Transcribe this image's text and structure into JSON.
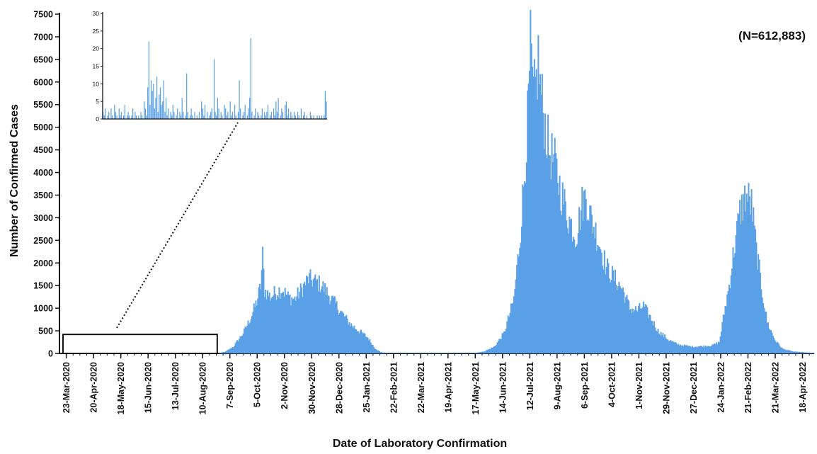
{
  "chart_data": {
    "type": "bar",
    "title": "",
    "xlabel": "Date of Laboratory Confirmation",
    "ylabel": "Number of Confirmed Cases",
    "annotation": "(N=612,883)",
    "color": "#5aa0e6",
    "ylim": [
      0,
      7500
    ],
    "yticks": [
      0,
      500,
      1000,
      1500,
      2000,
      2500,
      3000,
      3500,
      4000,
      4500,
      5000,
      5500,
      6000,
      6500,
      7000,
      7500
    ],
    "x_start_date": "2020-03-16",
    "x_end_date": "2022-04-30",
    "x_tick_labels": [
      "23-Mar-2020",
      "20-Apr-2020",
      "18-May-2020",
      "15-Jun-2020",
      "13-Jul-2020",
      "10-Aug-2020",
      "7-Sep-2020",
      "5-Oct-2020",
      "2-Nov-2020",
      "30-Nov-2020",
      "28-Dec-2020",
      "25-Jan-2021",
      "22-Feb-2021",
      "22-Mar-2021",
      "19-Apr-2021",
      "17-May-2021",
      "14-Jun-2021",
      "12-Jul-2021",
      "9-Aug-2021",
      "6-Sep-2021",
      "4-Oct-2021",
      "1-Nov-2021",
      "29-Nov-2021",
      "27-Dec-2021",
      "24-Jan-2022",
      "21-Feb-2022",
      "21-Mar-2022",
      "18-Apr-2022"
    ],
    "highlight_box": {
      "from": "2020-03-16",
      "to": "2020-08-25",
      "value": 420
    },
    "main_series_anchors": [
      [
        "2020-08-25",
        0
      ],
      [
        "2020-09-02",
        40
      ],
      [
        "2020-09-10",
        150
      ],
      [
        "2020-09-20",
        450
      ],
      [
        "2020-09-28",
        800
      ],
      [
        "2020-10-04",
        1150
      ],
      [
        "2020-10-08",
        1500
      ],
      [
        "2020-10-10",
        2150
      ],
      [
        "2020-10-12",
        1400
      ],
      [
        "2020-10-18",
        1250
      ],
      [
        "2020-10-25",
        1380
      ],
      [
        "2020-10-30",
        1420
      ],
      [
        "2020-11-05",
        1250
      ],
      [
        "2020-11-12",
        1200
      ],
      [
        "2020-11-20",
        1450
      ],
      [
        "2020-11-26",
        1650
      ],
      [
        "2020-12-02",
        1600
      ],
      [
        "2020-12-10",
        1500
      ],
      [
        "2020-12-20",
        1200
      ],
      [
        "2020-12-30",
        900
      ],
      [
        "2021-01-08",
        650
      ],
      [
        "2021-01-18",
        480
      ],
      [
        "2021-01-26",
        350
      ],
      [
        "2021-02-02",
        120
      ],
      [
        "2021-02-08",
        30
      ],
      [
        "2021-02-15",
        10
      ],
      [
        "2021-05-15",
        10
      ],
      [
        "2021-05-25",
        40
      ],
      [
        "2021-06-05",
        150
      ],
      [
        "2021-06-15",
        450
      ],
      [
        "2021-06-25",
        1200
      ],
      [
        "2021-07-01",
        2500
      ],
      [
        "2021-07-06",
        4000
      ],
      [
        "2021-07-10",
        5500
      ],
      [
        "2021-07-12",
        6700
      ],
      [
        "2021-07-15",
        5600
      ],
      [
        "2021-07-18",
        6000
      ],
      [
        "2021-07-20",
        6500
      ],
      [
        "2021-07-22",
        5900
      ],
      [
        "2021-07-26",
        5200
      ],
      [
        "2021-07-31",
        4500
      ],
      [
        "2021-08-06",
        4200
      ],
      [
        "2021-08-12",
        3600
      ],
      [
        "2021-08-20",
        3000
      ],
      [
        "2021-08-28",
        2600
      ],
      [
        "2021-09-03",
        3300
      ],
      [
        "2021-09-07",
        3500
      ],
      [
        "2021-09-12",
        3000
      ],
      [
        "2021-09-20",
        2500
      ],
      [
        "2021-09-28",
        1900
      ],
      [
        "2021-10-05",
        1700
      ],
      [
        "2021-10-15",
        1400
      ],
      [
        "2021-10-22",
        1000
      ],
      [
        "2021-10-30",
        950
      ],
      [
        "2021-11-05",
        1050
      ],
      [
        "2021-11-12",
        800
      ],
      [
        "2021-11-20",
        500
      ],
      [
        "2021-12-01",
        300
      ],
      [
        "2021-12-10",
        200
      ],
      [
        "2021-12-25",
        150
      ],
      [
        "2022-01-05",
        160
      ],
      [
        "2022-01-15",
        180
      ],
      [
        "2022-01-22",
        250
      ],
      [
        "2022-01-27",
        900
      ],
      [
        "2022-02-01",
        1500
      ],
      [
        "2022-02-06",
        2300
      ],
      [
        "2022-02-12",
        3100
      ],
      [
        "2022-02-18",
        3500
      ],
      [
        "2022-02-24",
        3300
      ],
      [
        "2022-03-01",
        2300
      ],
      [
        "2022-03-06",
        1500
      ],
      [
        "2022-03-12",
        700
      ],
      [
        "2022-03-20",
        300
      ],
      [
        "2022-03-28",
        100
      ],
      [
        "2022-04-08",
        40
      ],
      [
        "2022-04-30",
        10
      ]
    ],
    "inset": {
      "ylim": [
        0,
        30
      ],
      "yticks": [
        0,
        5,
        10,
        15,
        20,
        25,
        30
      ],
      "daily_values": [
        2,
        1,
        3,
        0,
        1,
        2,
        0,
        3,
        1,
        0,
        4,
        2,
        1,
        0,
        3,
        1,
        2,
        0,
        1,
        4,
        0,
        1,
        2,
        1,
        0,
        1,
        3,
        0,
        2,
        1,
        0,
        1,
        0,
        2,
        1,
        0,
        5,
        3,
        1,
        9,
        22,
        4,
        11,
        8,
        10,
        3,
        6,
        12,
        2,
        7,
        9,
        4,
        5,
        11,
        2,
        6,
        1,
        3,
        0,
        2,
        1,
        4,
        2,
        0,
        1,
        3,
        0,
        2,
        1,
        6,
        2,
        0,
        1,
        13,
        2,
        0,
        1,
        3,
        1,
        0,
        2,
        0,
        1,
        0,
        2,
        0,
        5,
        3,
        1,
        4,
        0,
        2,
        0,
        1,
        2,
        3,
        0,
        17,
        2,
        1,
        6,
        3,
        0,
        2,
        1,
        0,
        4,
        3,
        1,
        2,
        0,
        5,
        1,
        2,
        0,
        4,
        1,
        0,
        2,
        11,
        3,
        0,
        1,
        2,
        4,
        0,
        1,
        3,
        6,
        23,
        2,
        0,
        1,
        3,
        0,
        2,
        1,
        0,
        1,
        3,
        0,
        2,
        1,
        2,
        4,
        0,
        1,
        2,
        0,
        3,
        1,
        5,
        2,
        6,
        0,
        1,
        3,
        2,
        0,
        4,
        5,
        1,
        3,
        0,
        2,
        1,
        0,
        2,
        1,
        0,
        2,
        1,
        0,
        3,
        0,
        1,
        2,
        0,
        1,
        0,
        0,
        2,
        1,
        0,
        1,
        0,
        0,
        1,
        0,
        1,
        0,
        1,
        0,
        1,
        8,
        5
      ]
    }
  }
}
